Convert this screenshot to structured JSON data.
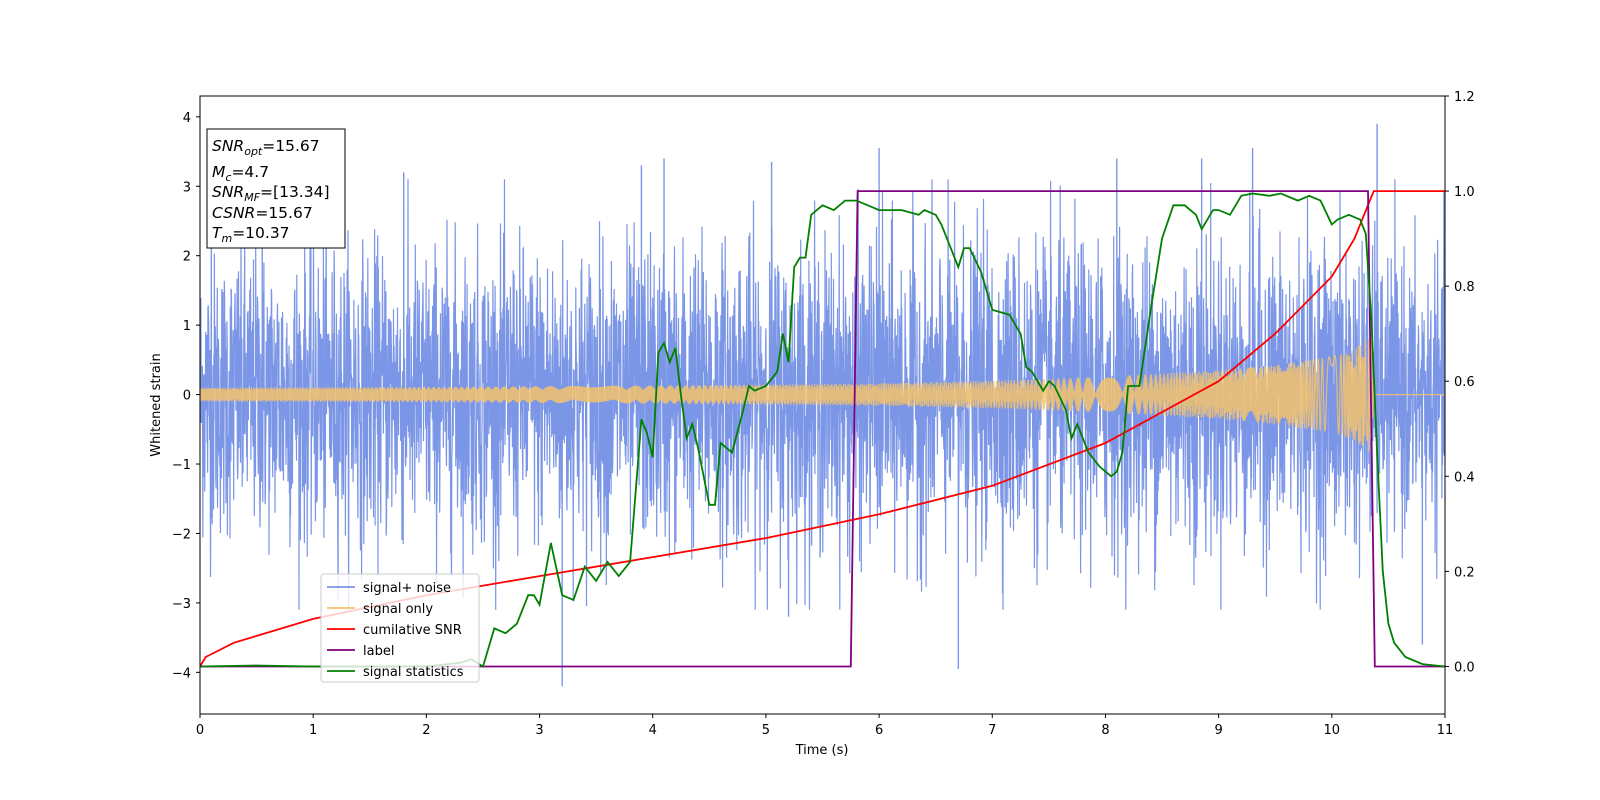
{
  "chart_data": {
    "type": "line",
    "title": "",
    "xlabel": "Time (s)",
    "ylabel": "Whitened strain",
    "xlim": [
      0,
      11
    ],
    "ylim": [
      -4.6,
      4.3
    ],
    "y2lim": [
      -0.1,
      1.2
    ],
    "x_ticks": [
      0,
      1,
      2,
      3,
      4,
      5,
      6,
      7,
      8,
      9,
      10,
      11
    ],
    "y_ticks": [
      4,
      3,
      2,
      1,
      0,
      -1,
      -2,
      -3,
      -4
    ],
    "y2_ticks": [
      1.2,
      1.0,
      0.8,
      0.6,
      0.4,
      0.2,
      0.0
    ],
    "legend_position": "lower-left",
    "annotation": {
      "snr_opt": {
        "name": "SNR",
        "sub": "opt",
        "value": "=15.67"
      },
      "mc": {
        "name": "M",
        "sub": "c",
        "value": "=4.7"
      },
      "snr_mf": {
        "name": "SNR",
        "sub": "MF",
        "value": "=[13.34]"
      },
      "csnr": {
        "name": "CSNR",
        "sub": "",
        "value": "=15.67"
      },
      "tm": {
        "name": "T",
        "sub": "m",
        "value": "=10.37"
      }
    },
    "series": [
      {
        "name": "signal+ noise",
        "color": "#7b96e6",
        "axis": "left",
        "description_envelope": {
          "x": [
            0,
            5.8,
            10.35,
            10.4,
            11
          ],
          "typical_abs": [
            2.6,
            2.8,
            2.8,
            2.5,
            2.3
          ]
        },
        "spikes": [
          [
            0.1,
            2.9
          ],
          [
            0.55,
            3.0
          ],
          [
            1.8,
            3.2
          ],
          [
            3.2,
            -4.2
          ],
          [
            3.9,
            3.3
          ],
          [
            4.1,
            3.4
          ],
          [
            5.05,
            3.35
          ],
          [
            5.2,
            -3.2
          ],
          [
            6.0,
            3.55
          ],
          [
            6.7,
            -3.95
          ],
          [
            8.1,
            3.4
          ],
          [
            8.85,
            3.4
          ],
          [
            9.3,
            3.55
          ],
          [
            10.4,
            3.9
          ],
          [
            10.8,
            -3.6
          ]
        ]
      },
      {
        "name": "signal only",
        "color": "#f5c36c",
        "axis": "left",
        "amplitude_envelope": {
          "x": [
            0,
            2,
            4,
            6,
            7,
            8,
            9,
            9.5,
            10,
            10.2,
            10.35,
            10.37,
            11
          ],
          "amp": [
            0.1,
            0.11,
            0.13,
            0.16,
            0.2,
            0.26,
            0.35,
            0.43,
            0.55,
            0.65,
            0.85,
            0.0,
            0.0
          ]
        }
      },
      {
        "name": "cumilative SNR",
        "color": "#ff0000",
        "axis": "right",
        "x": [
          0,
          0.05,
          0.3,
          1,
          2,
          3,
          4,
          5,
          6,
          7,
          8,
          9,
          9.5,
          10,
          10.2,
          10.37,
          10.4,
          11
        ],
        "y": [
          0.0,
          0.02,
          0.05,
          0.1,
          0.15,
          0.19,
          0.23,
          0.27,
          0.32,
          0.38,
          0.47,
          0.6,
          0.7,
          0.82,
          0.9,
          1.0,
          1.0,
          1.0
        ]
      },
      {
        "name": "label",
        "color": "#800080",
        "axis": "right",
        "x": [
          0,
          5.75,
          5.81,
          10.32,
          10.38,
          11
        ],
        "y": [
          0,
          0,
          1,
          1,
          0,
          0
        ]
      },
      {
        "name": "signal statistics",
        "color": "#008000",
        "axis": "right",
        "x": [
          0,
          0.5,
          1,
          1.5,
          2,
          2.3,
          2.4,
          2.5,
          2.6,
          2.7,
          2.8,
          2.9,
          2.95,
          3.0,
          3.1,
          3.2,
          3.3,
          3.4,
          3.5,
          3.6,
          3.7,
          3.8,
          3.9,
          3.95,
          4.0,
          4.05,
          4.1,
          4.15,
          4.2,
          4.25,
          4.3,
          4.35,
          4.4,
          4.5,
          4.55,
          4.6,
          4.65,
          4.7,
          4.8,
          4.85,
          4.9,
          5.0,
          5.1,
          5.15,
          5.2,
          5.25,
          5.3,
          5.35,
          5.4,
          5.5,
          5.6,
          5.7,
          5.8,
          5.9,
          6.0,
          6.2,
          6.35,
          6.4,
          6.5,
          6.55,
          6.6,
          6.7,
          6.75,
          6.8,
          6.9,
          7.0,
          7.15,
          7.25,
          7.3,
          7.35,
          7.45,
          7.5,
          7.55,
          7.65,
          7.7,
          7.75,
          7.85,
          7.95,
          8.05,
          8.1,
          8.15,
          8.2,
          8.3,
          8.4,
          8.5,
          8.6,
          8.7,
          8.8,
          8.85,
          8.95,
          9.0,
          9.1,
          9.2,
          9.3,
          9.45,
          9.55,
          9.7,
          9.8,
          9.9,
          10.0,
          10.05,
          10.15,
          10.25,
          10.3,
          10.35,
          10.4,
          10.45,
          10.5,
          10.55,
          10.65,
          10.8,
          11.0
        ],
        "y": [
          0.0,
          0.002,
          0.0,
          0.0,
          0.0,
          0.008,
          0.015,
          0.0,
          0.08,
          0.07,
          0.09,
          0.15,
          0.15,
          0.13,
          0.26,
          0.15,
          0.14,
          0.21,
          0.18,
          0.22,
          0.19,
          0.22,
          0.52,
          0.49,
          0.44,
          0.66,
          0.68,
          0.64,
          0.67,
          0.57,
          0.48,
          0.51,
          0.46,
          0.34,
          0.34,
          0.47,
          0.46,
          0.45,
          0.54,
          0.59,
          0.58,
          0.59,
          0.62,
          0.7,
          0.64,
          0.84,
          0.86,
          0.86,
          0.95,
          0.97,
          0.96,
          0.98,
          0.98,
          0.97,
          0.96,
          0.96,
          0.95,
          0.96,
          0.95,
          0.93,
          0.9,
          0.84,
          0.88,
          0.88,
          0.83,
          0.75,
          0.74,
          0.7,
          0.63,
          0.62,
          0.58,
          0.6,
          0.59,
          0.54,
          0.48,
          0.51,
          0.45,
          0.42,
          0.4,
          0.41,
          0.45,
          0.59,
          0.59,
          0.75,
          0.9,
          0.97,
          0.97,
          0.95,
          0.92,
          0.96,
          0.96,
          0.95,
          0.99,
          0.995,
          0.99,
          0.995,
          0.98,
          0.99,
          0.98,
          0.93,
          0.94,
          0.95,
          0.94,
          0.91,
          0.73,
          0.45,
          0.2,
          0.09,
          0.05,
          0.02,
          0.005,
          0.0
        ]
      }
    ]
  }
}
